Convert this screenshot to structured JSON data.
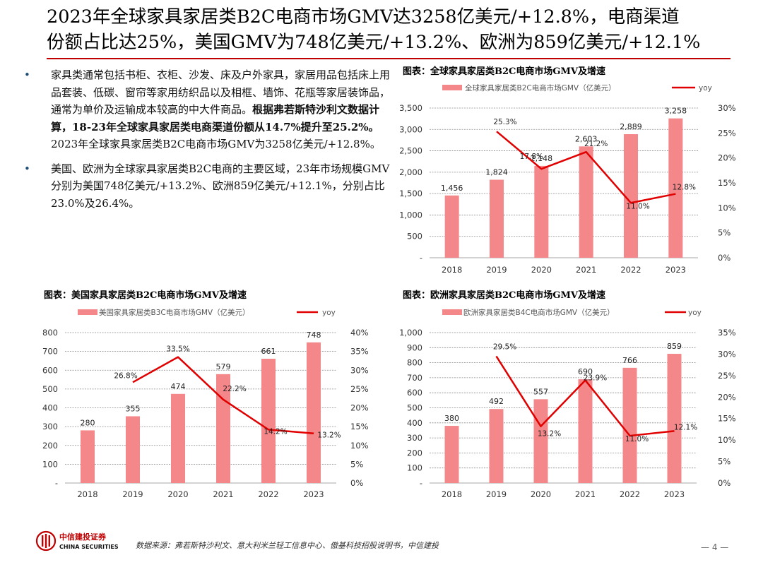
{
  "page": {
    "title_line1": "2023年全球家具家居类B2C电商市场GMV达3258亿美元/+12.8%，电商渠道",
    "title_line2": "份额占比达25%，美国GMV为748亿美元/+13.2%、欧洲为859亿美元/+12.1%",
    "bullet1_part1": "家具类通常包括书柜、衣柜、沙发、床及户外家具，家居用品包括床上用品套装、低碳、窗帘等家用纺织品以及相框、墙饰、花瓶等家居装饰品，通常为单价及运输成本较高的中大件商品。",
    "bullet1_part2": "根据弗若斯特沙利文数据计算，18-23年全球家具家居类电商渠道份额从14.7%提升至25.2%。",
    "bullet1_part3": "2023年全球家具家居类B2C电商市场GMV为3258亿美元/+12.8%。",
    "bullet2": "美国、欧洲为全球家具家居类B2C电商的主要区域，23年市场规模GMV分别为美国748亿美元/+13.2%、欧洲859亿美元/+12.1%，分别占比23.0%及26.4%。",
    "bullet_marker": "•",
    "source": "数据来源：弗若斯特沙利文、意大利米兰轻工信息中心、傲基科技招股说明书，中信建投",
    "page_number": "— 4 —",
    "logo_cn": "中信建投证券",
    "logo_en": "CHINA SECURITIES"
  },
  "colors": {
    "bar": "#f4878a",
    "line": "#e00000",
    "accent": "#c00000",
    "grid": "#8a8a8a"
  },
  "chart_data": [
    {
      "type": "bar",
      "panel_title": "图表：全球家具家居类B2C电商市场GMV及增速",
      "categories": [
        "2018",
        "2019",
        "2020",
        "2021",
        "2022",
        "2023"
      ],
      "series": [
        {
          "name": "全球家具家居类B2C电商市场GMV（亿美元）",
          "type": "bar",
          "axis": "left",
          "values": [
            1456,
            1824,
            2148,
            2603,
            2889,
            3258
          ],
          "labels": [
            "1,456",
            "1,824",
            "2,148",
            "2,603",
            "2,889",
            "3,258"
          ]
        },
        {
          "name": "yoy",
          "type": "line",
          "axis": "right",
          "values": [
            null,
            25.3,
            17.8,
            21.2,
            11.0,
            12.8
          ],
          "labels": [
            "",
            "25.3%",
            "17.8%",
            "21.2%",
            "11.0%",
            "12.8%"
          ]
        }
      ],
      "ylim": [
        0,
        3500
      ],
      "y_ticks": [
        "-",
        "500",
        "1,000",
        "1,500",
        "2,000",
        "2,500",
        "3,000",
        "3,500"
      ],
      "y2lim": [
        0,
        30
      ],
      "y2_ticks": [
        "0%",
        "5%",
        "10%",
        "15%",
        "20%",
        "25%",
        "30%"
      ],
      "grid": true,
      "legend": "top"
    },
    {
      "type": "bar",
      "panel_title": "图表：美国家具家居类B2C电商市场GMV及增速",
      "categories": [
        "2018",
        "2019",
        "2020",
        "2021",
        "2022",
        "2023"
      ],
      "series": [
        {
          "name": "美国家具家居类B3C电商市场GMV（亿美元）",
          "type": "bar",
          "axis": "left",
          "values": [
            280,
            355,
            474,
            579,
            661,
            748
          ],
          "labels": [
            "280",
            "355",
            "474",
            "579",
            "661",
            "748"
          ]
        },
        {
          "name": "yoy",
          "type": "line",
          "axis": "right",
          "values": [
            null,
            26.8,
            33.5,
            22.2,
            14.2,
            13.2
          ],
          "labels": [
            "",
            "26.8%",
            "33.5%",
            "22.2%",
            "14.2%",
            "13.2%"
          ]
        }
      ],
      "ylim": [
        0,
        800
      ],
      "y_ticks": [
        "-",
        "100",
        "200",
        "300",
        "400",
        "500",
        "600",
        "700",
        "800"
      ],
      "y2lim": [
        0,
        40
      ],
      "y2_ticks": [
        "0%",
        "5%",
        "10%",
        "15%",
        "20%",
        "25%",
        "30%",
        "35%",
        "40%"
      ],
      "grid": true,
      "legend": "top"
    },
    {
      "type": "bar",
      "panel_title": "图表：欧洲家具家居类B2C电商市场GMV及增速",
      "categories": [
        "2018",
        "2019",
        "2020",
        "2021",
        "2022",
        "2023"
      ],
      "series": [
        {
          "name": "欧洲家具家居类B4C电商市场GMV（亿美元）",
          "type": "bar",
          "axis": "left",
          "values": [
            380,
            492,
            557,
            690,
            766,
            859
          ],
          "labels": [
            "380",
            "492",
            "557",
            "690",
            "766",
            "859"
          ]
        },
        {
          "name": "yoy",
          "type": "line",
          "axis": "right",
          "values": [
            null,
            29.5,
            13.2,
            23.9,
            11.0,
            12.1
          ],
          "labels": [
            "",
            "29.5%",
            "13.2%",
            "23.9%",
            "11.0%",
            "12.1%"
          ]
        }
      ],
      "ylim": [
        0,
        1000
      ],
      "y_ticks": [
        "-",
        "100",
        "200",
        "300",
        "400",
        "500",
        "600",
        "700",
        "800",
        "900",
        "1,000"
      ],
      "y2lim": [
        0,
        35
      ],
      "y2_ticks": [
        "0%",
        "5%",
        "10%",
        "15%",
        "20%",
        "25%",
        "30%",
        "35%"
      ],
      "grid": true,
      "legend": "top"
    }
  ]
}
